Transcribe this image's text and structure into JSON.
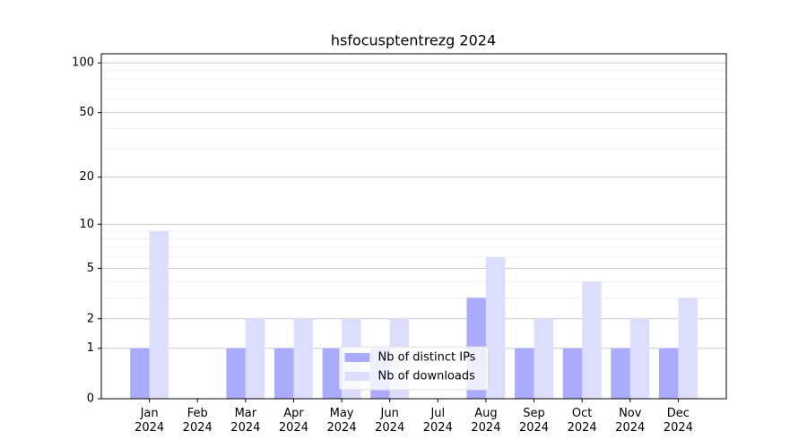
{
  "chart_data": {
    "type": "bar",
    "title": "hsfocusptentrezg 2024",
    "categories": [
      "Jan 2024",
      "Feb 2024",
      "Mar 2024",
      "Apr 2024",
      "May 2024",
      "Jun 2024",
      "Jul 2024",
      "Aug 2024",
      "Sep 2024",
      "Oct 2024",
      "Nov 2024",
      "Dec 2024"
    ],
    "series": [
      {
        "name": "Nb of distinct IPs",
        "color": "#aaaaff",
        "values": [
          1,
          0,
          1,
          1,
          1,
          1,
          0,
          3,
          1,
          1,
          1,
          1
        ]
      },
      {
        "name": "Nb of downloads",
        "color": "#ddddff",
        "values": [
          9,
          0,
          2,
          2,
          2,
          2,
          0,
          6,
          2,
          4,
          2,
          3
        ]
      }
    ],
    "y_scale": "log1p",
    "ylim": [
      0,
      113.5
    ],
    "yticks": [
      0,
      1,
      2,
      5,
      10,
      20,
      50,
      100
    ],
    "minor_yticks": [
      3,
      4,
      6,
      7,
      8,
      9,
      30,
      40,
      60,
      70,
      80,
      90
    ],
    "grid": true,
    "legend": "lower center"
  }
}
